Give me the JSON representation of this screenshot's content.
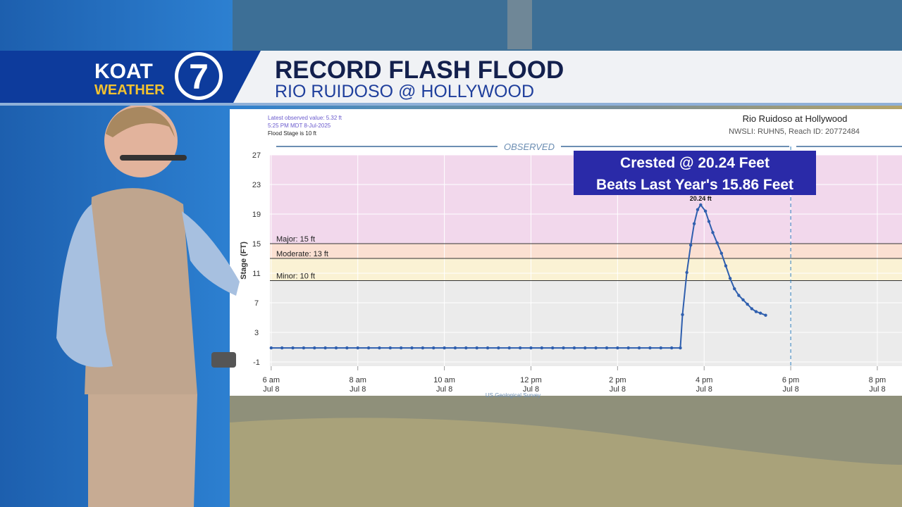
{
  "banner": {
    "station": "KOAT",
    "brand": "WEATHER",
    "channel": "7",
    "headline": "RECORD FLASH FLOOD",
    "subheadline": "RIO RUIDOSO @ HOLLYWOOD"
  },
  "chart_data": {
    "type": "line",
    "title": "Rio Ruidoso at Hollywood",
    "subtitle": "NWSLI: RUHN5, Reach ID: 20772484",
    "info": [
      "Latest observed value: 5.32 ft",
      "5:25 PM MDT 8-Jul-2025",
      "Flood Stage is 10 ft"
    ],
    "section_label": "OBSERVED",
    "y_label": "Stage (FT)",
    "source": "US Geological Survey",
    "annotation": [
      "Crested @ 20.24 Feet",
      "Beats Last Year's 15.86 Feet"
    ],
    "peak_label": "20.24 ft",
    "thresholds": [
      {
        "label": "Major: 15 ft",
        "value": 15,
        "color": "#f2d8ec"
      },
      {
        "label": "Moderate: 13 ft",
        "value": 13,
        "color": "#fbe0d2"
      },
      {
        "label": "Minor: 10 ft",
        "value": 10,
        "color": "#faf2d4"
      }
    ],
    "series": [
      {
        "name": "Observed stage",
        "color": "#2f5fae",
        "x": [
          6,
          6.25,
          6.5,
          6.75,
          7,
          7.25,
          7.5,
          7.75,
          8,
          8.25,
          8.5,
          8.75,
          9,
          9.25,
          9.5,
          9.75,
          10,
          10.25,
          10.5,
          10.75,
          11,
          11.25,
          11.5,
          11.75,
          12,
          12.25,
          12.5,
          12.75,
          13,
          13.25,
          13.5,
          13.75,
          14,
          14.25,
          14.5,
          14.75,
          15,
          15.25,
          15.45,
          15.5,
          15.6,
          15.69,
          15.77,
          15.85,
          15.92,
          16.03,
          16.11,
          16.2,
          16.3,
          16.4,
          16.5,
          16.6,
          16.7,
          16.8,
          16.9,
          17,
          17.1,
          17.2,
          17.3,
          17.42
        ],
        "values": [
          0.9,
          0.9,
          0.9,
          0.9,
          0.9,
          0.9,
          0.9,
          0.9,
          0.9,
          0.9,
          0.9,
          0.9,
          0.9,
          0.9,
          0.9,
          0.9,
          0.9,
          0.9,
          0.9,
          0.9,
          0.9,
          0.9,
          0.9,
          0.9,
          0.9,
          0.9,
          0.9,
          0.9,
          0.9,
          0.9,
          0.9,
          0.9,
          0.9,
          0.9,
          0.9,
          0.9,
          0.9,
          0.9,
          0.9,
          5.4,
          11.1,
          14.8,
          17.7,
          19.6,
          20.24,
          19.4,
          18,
          16.5,
          15.1,
          13.7,
          12,
          10.3,
          8.9,
          8,
          7.4,
          6.8,
          6.2,
          5.8,
          5.6,
          5.32
        ]
      }
    ],
    "now_x": 18,
    "xlim": [
      5.97,
      20.57
    ],
    "xticks": [
      {
        "value": 6,
        "label": "6 am\nJul 8"
      },
      {
        "value": 8,
        "label": "8 am\nJul 8"
      },
      {
        "value": 10,
        "label": "10 am\nJul 8"
      },
      {
        "value": 12,
        "label": "12 pm\nJul 8"
      },
      {
        "value": 14,
        "label": "2 pm\nJul 8"
      },
      {
        "value": 16,
        "label": "4 pm\nJul 8"
      },
      {
        "value": 18,
        "label": "6 pm\nJul 8"
      },
      {
        "value": 20,
        "label": "8 pm\nJul 8"
      }
    ],
    "ylim": [
      -1.57,
      27
    ],
    "yticks": [
      -1,
      3,
      7,
      11,
      15,
      19,
      23,
      27
    ],
    "grid": true
  }
}
